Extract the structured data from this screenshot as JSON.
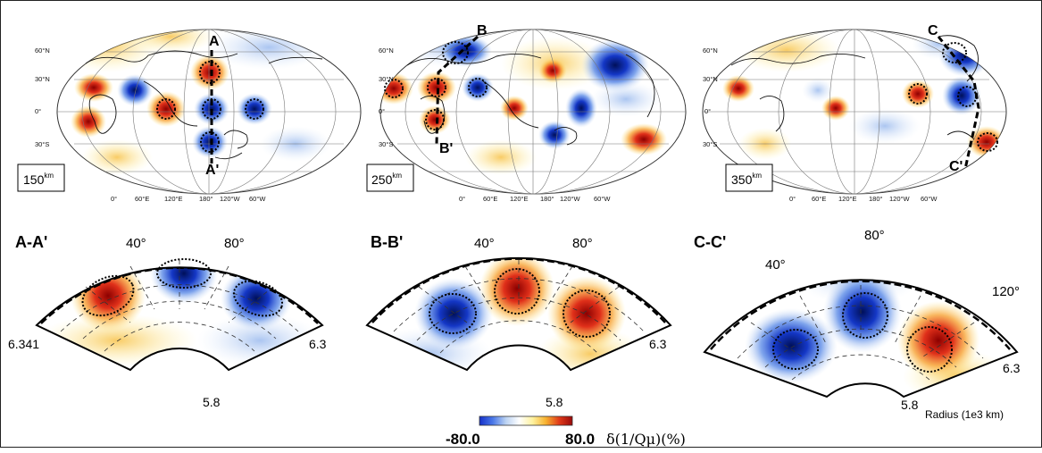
{
  "figure": {
    "maps": [
      {
        "depth_value": "150",
        "depth_unit": "km",
        "lon_labels": [
          "0°",
          "60°E",
          "120°E",
          "180°",
          "120°W",
          "60°W"
        ],
        "lat_labels": [
          "60°N",
          "30°N",
          "0°",
          "30°S"
        ],
        "profile_start": "A",
        "profile_end": "A'"
      },
      {
        "depth_value": "250",
        "depth_unit": "km",
        "lon_labels": [
          "0°",
          "60°E",
          "120°E",
          "180°",
          "120°W",
          "60°W"
        ],
        "lat_labels": [
          "60°N",
          "30°N",
          "0°",
          "30°S"
        ],
        "profile_start": "B",
        "profile_end": "B'"
      },
      {
        "depth_value": "350",
        "depth_unit": "km",
        "lon_labels": [
          "0°",
          "60°E",
          "120°E",
          "180°",
          "120°W",
          "60°W"
        ],
        "lat_labels": [
          "60°N",
          "30°N",
          "0°",
          "30°S"
        ],
        "profile_start": "C",
        "profile_end": "C'"
      }
    ],
    "sections": [
      {
        "title": "A-A'",
        "angle_labels": [
          "40°",
          "80°"
        ],
        "left_radius": "6.341",
        "right_radius": "6.3",
        "inner_radius": "5.8"
      },
      {
        "title": "B-B'",
        "angle_labels": [
          "40°",
          "80°"
        ],
        "left_radius": "",
        "right_radius": "6.3",
        "inner_radius": "5.8"
      },
      {
        "title": "C-C'",
        "angle_labels": [
          "40°",
          "80°",
          "120°"
        ],
        "left_radius": "",
        "right_radius": "6.3",
        "inner_radius": "5.8",
        "axis_label": "Radius (1e3 km)"
      }
    ],
    "colorbar": {
      "min_label": "-80.0",
      "max_label": "80.0",
      "quantity_label": "δ(1/Qμ)(%)",
      "colors": [
        "#1530c8",
        "#4a78e8",
        "#bcd3f2",
        "#ffffff",
        "#fff2a0",
        "#f7b230",
        "#e03a1a",
        "#9a0a0a"
      ]
    }
  }
}
